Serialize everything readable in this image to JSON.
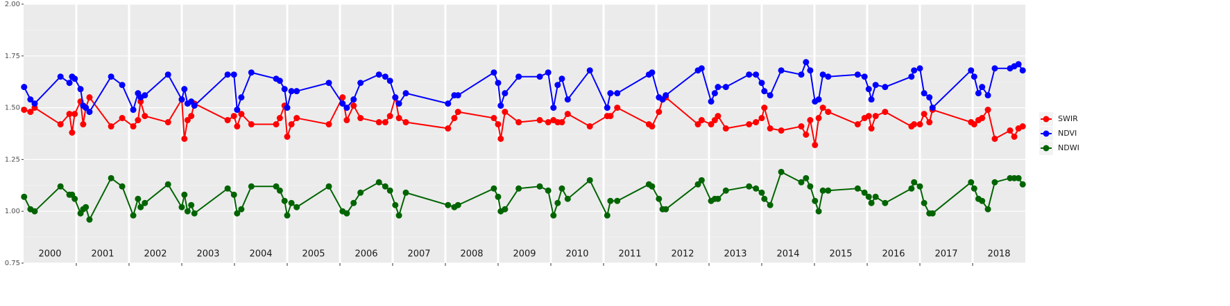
{
  "chart_data": {
    "type": "line",
    "categories": [
      "2000",
      "2001",
      "2002",
      "2003",
      "2004",
      "2005",
      "2006",
      "2007",
      "2008",
      "2009",
      "2010",
      "2011",
      "2012",
      "2013",
      "2014",
      "2015",
      "2016",
      "2017",
      "2018"
    ],
    "xlim": [
      2000,
      2019
    ],
    "ylim": [
      0.75,
      2.0
    ],
    "yticks": [
      {
        "value": 0.75,
        "label": "0.75"
      },
      {
        "value": 1.0,
        "label": "1.00"
      },
      1.25,
      {
        "value": 1.5,
        "label": "1.50"
      },
      1.75,
      {
        "value": 2.0,
        "label": "2.00"
      }
    ],
    "grid": true,
    "legend": "right",
    "x": [
      2000.01,
      2000.13,
      2000.21,
      2000.7,
      2000.87,
      2000.92,
      2000.97,
      2001.08,
      2001.13,
      2001.18,
      2001.25,
      2001.66,
      2001.87,
      2002.08,
      2002.17,
      2002.22,
      2002.3,
      2002.74,
      2003.0,
      2003.05,
      2003.11,
      2003.18,
      2003.24,
      2003.87,
      2003.99,
      2004.05,
      2004.13,
      2004.32,
      2004.79,
      2004.86,
      2004.95,
      2005.0,
      2005.08,
      2005.18,
      2005.79,
      2006.05,
      2006.13,
      2006.26,
      2006.39,
      2006.74,
      2006.86,
      2006.95,
      2007.05,
      2007.12,
      2007.25,
      2008.05,
      2008.17,
      2008.24,
      2008.92,
      2009.0,
      2009.05,
      2009.13,
      2009.39,
      2009.79,
      2009.95,
      2010.05,
      2010.13,
      2010.21,
      2010.32,
      2010.74,
      2011.07,
      2011.13,
      2011.26,
      2011.86,
      2011.92,
      2012.05,
      2012.12,
      2012.18,
      2012.79,
      2012.86,
      2013.04,
      2013.11,
      2013.17,
      2013.32,
      2013.76,
      2013.89,
      2014.0,
      2014.05,
      2014.16,
      2014.37,
      2014.75,
      2014.84,
      2014.92,
      2015.01,
      2015.08,
      2015.16,
      2015.26,
      2015.82,
      2015.95,
      2016.03,
      2016.08,
      2016.16,
      2016.34,
      2016.84,
      2016.89,
      2017.0,
      2017.08,
      2017.18,
      2017.24,
      2017.97,
      2018.03,
      2018.11,
      2018.18,
      2018.29,
      2018.42,
      2018.71,
      2018.79,
      2018.87,
      2018.95
    ],
    "series": [
      {
        "name": "SWIR",
        "color": "#ff0000",
        "values": [
          1.49,
          1.48,
          1.5,
          1.42,
          1.47,
          1.38,
          1.47,
          1.53,
          1.42,
          1.5,
          1.55,
          1.41,
          1.45,
          1.41,
          1.44,
          1.53,
          1.46,
          1.43,
          1.54,
          1.35,
          1.44,
          1.46,
          1.52,
          1.44,
          1.46,
          1.41,
          1.47,
          1.42,
          1.42,
          1.45,
          1.51,
          1.36,
          1.42,
          1.45,
          1.42,
          1.55,
          1.44,
          1.51,
          1.45,
          1.43,
          1.43,
          1.46,
          1.55,
          1.45,
          1.43,
          1.4,
          1.45,
          1.48,
          1.45,
          1.42,
          1.35,
          1.48,
          1.43,
          1.44,
          1.43,
          1.44,
          1.43,
          1.43,
          1.47,
          1.41,
          1.46,
          1.46,
          1.5,
          1.42,
          1.41,
          1.48,
          1.54,
          1.55,
          1.42,
          1.44,
          1.42,
          1.44,
          1.46,
          1.4,
          1.42,
          1.43,
          1.45,
          1.5,
          1.4,
          1.39,
          1.41,
          1.37,
          1.44,
          1.32,
          1.45,
          1.5,
          1.48,
          1.42,
          1.45,
          1.46,
          1.4,
          1.46,
          1.48,
          1.41,
          1.42,
          1.42,
          1.47,
          1.43,
          1.49,
          1.43,
          1.42,
          1.44,
          1.45,
          1.49,
          1.35,
          1.39,
          1.36,
          1.4,
          1.41
        ]
      },
      {
        "name": "NDVI",
        "color": "#0000ff",
        "values": [
          1.6,
          1.54,
          1.52,
          1.65,
          1.62,
          1.65,
          1.64,
          1.59,
          1.51,
          1.5,
          1.48,
          1.65,
          1.61,
          1.49,
          1.57,
          1.55,
          1.56,
          1.66,
          1.54,
          1.59,
          1.52,
          1.53,
          1.51,
          1.66,
          1.66,
          1.49,
          1.55,
          1.67,
          1.64,
          1.63,
          1.59,
          1.5,
          1.58,
          1.58,
          1.62,
          1.52,
          1.5,
          1.54,
          1.62,
          1.66,
          1.65,
          1.63,
          1.55,
          1.52,
          1.57,
          1.52,
          1.56,
          1.56,
          1.67,
          1.62,
          1.51,
          1.57,
          1.65,
          1.65,
          1.67,
          1.5,
          1.61,
          1.64,
          1.54,
          1.68,
          1.5,
          1.57,
          1.57,
          1.66,
          1.67,
          1.55,
          1.54,
          1.56,
          1.68,
          1.69,
          1.53,
          1.57,
          1.6,
          1.6,
          1.66,
          1.66,
          1.62,
          1.58,
          1.56,
          1.68,
          1.66,
          1.72,
          1.68,
          1.53,
          1.54,
          1.66,
          1.65,
          1.66,
          1.65,
          1.59,
          1.54,
          1.61,
          1.6,
          1.65,
          1.68,
          1.69,
          1.57,
          1.55,
          1.5,
          1.68,
          1.65,
          1.57,
          1.6,
          1.56,
          1.69,
          1.69,
          1.7,
          1.71,
          1.68
        ]
      },
      {
        "name": "NDWI",
        "color": "#006400",
        "values": [
          1.07,
          1.01,
          1.0,
          1.12,
          1.08,
          1.08,
          1.06,
          0.99,
          1.01,
          1.02,
          0.96,
          1.16,
          1.12,
          0.98,
          1.06,
          1.02,
          1.04,
          1.13,
          1.02,
          1.08,
          1.0,
          1.03,
          0.99,
          1.11,
          1.08,
          0.99,
          1.01,
          1.12,
          1.12,
          1.1,
          1.05,
          0.98,
          1.04,
          1.02,
          1.12,
          1.0,
          0.99,
          1.04,
          1.09,
          1.14,
          1.12,
          1.1,
          1.03,
          0.98,
          1.09,
          1.03,
          1.02,
          1.03,
          1.11,
          1.07,
          1.0,
          1.01,
          1.11,
          1.12,
          1.1,
          0.98,
          1.04,
          1.11,
          1.06,
          1.15,
          0.98,
          1.05,
          1.05,
          1.13,
          1.12,
          1.06,
          1.01,
          1.01,
          1.13,
          1.15,
          1.05,
          1.06,
          1.06,
          1.1,
          1.12,
          1.11,
          1.09,
          1.06,
          1.03,
          1.19,
          1.14,
          1.16,
          1.12,
          1.05,
          1.0,
          1.1,
          1.1,
          1.11,
          1.09,
          1.07,
          1.04,
          1.07,
          1.04,
          1.11,
          1.14,
          1.12,
          1.04,
          0.99,
          0.99,
          1.14,
          1.11,
          1.06,
          1.05,
          1.01,
          1.14,
          1.16,
          1.16,
          1.16,
          1.13
        ]
      }
    ]
  }
}
